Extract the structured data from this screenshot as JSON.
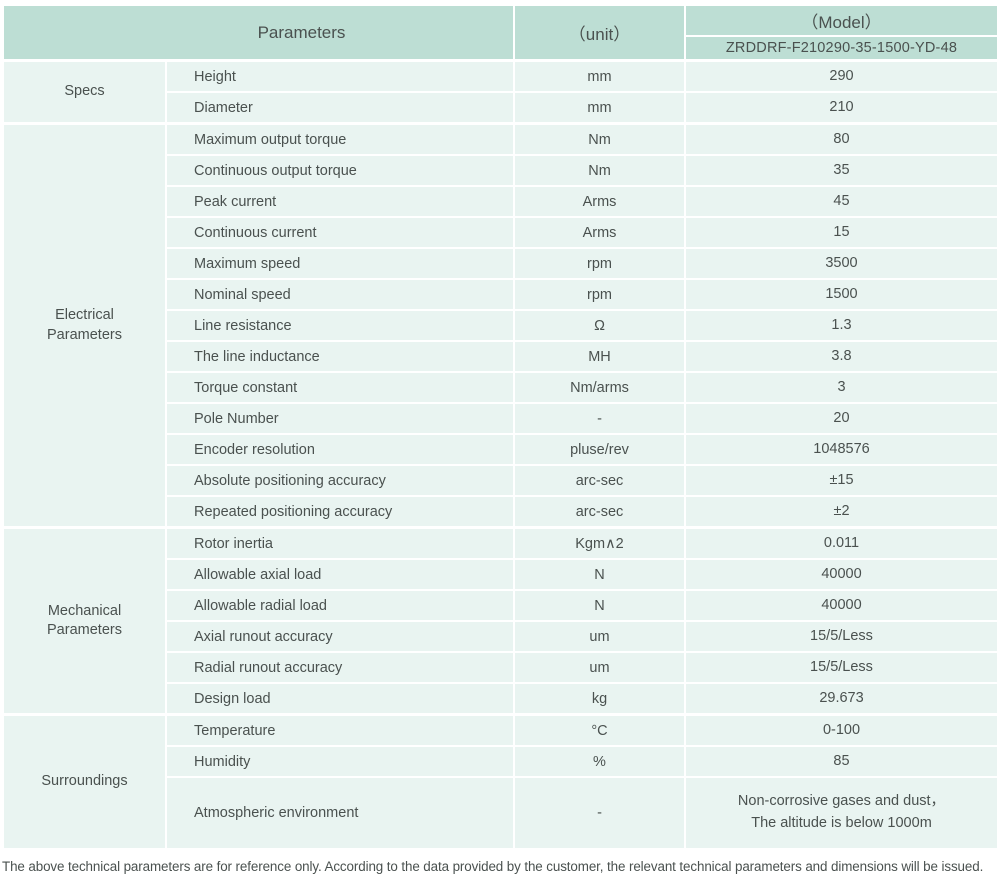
{
  "colors": {
    "header_bg": "#bdded4",
    "row_bg": "#e9f4f1",
    "text": "#4a514f"
  },
  "table": {
    "header": {
      "parameters_label": "Parameters",
      "unit_label": "（unit）",
      "model_label": "（Model）",
      "model_number": "ZRDDRF-F210290-35-1500-YD-48"
    },
    "sections": [
      {
        "group": "Specs",
        "rows": [
          {
            "param": "Height",
            "unit": "mm",
            "value": "290"
          },
          {
            "param": "Diameter",
            "unit": "mm",
            "value": "210"
          }
        ]
      },
      {
        "group": "Electrical\nParameters",
        "rows": [
          {
            "param": "Maximum output torque",
            "unit": "Nm",
            "value": "80"
          },
          {
            "param": "Continuous output torque",
            "unit": "Nm",
            "value": "35"
          },
          {
            "param": "Peak current",
            "unit": "Arms",
            "value": "45"
          },
          {
            "param": "Continuous current",
            "unit": "Arms",
            "value": "15"
          },
          {
            "param": "Maximum speed",
            "unit": "rpm",
            "value": "3500"
          },
          {
            "param": "Nominal speed",
            "unit": "rpm",
            "value": "1500"
          },
          {
            "param": "Line resistance",
            "unit": "Ω",
            "value": "1.3"
          },
          {
            "param": "The line inductance",
            "unit": "MH",
            "value": "3.8"
          },
          {
            "param": "Torque constant",
            "unit": "Nm/arms",
            "value": "3"
          },
          {
            "param": "Pole Number",
            "unit": "-",
            "value": "20"
          },
          {
            "param": "Encoder resolution",
            "unit": "pluse/rev",
            "value": "1048576"
          },
          {
            "param": "Absolute positioning accuracy",
            "unit": "arc-sec",
            "value": "±15"
          },
          {
            "param": "Repeated positioning accuracy",
            "unit": "arc-sec",
            "value": "±2"
          }
        ]
      },
      {
        "group": "Mechanical\nParameters",
        "rows": [
          {
            "param": "Rotor inertia",
            "unit": "Kgm∧2",
            "value": "0.011"
          },
          {
            "param": "Allowable axial load",
            "unit": "N",
            "value": "40000"
          },
          {
            "param": "Allowable radial load",
            "unit": "N",
            "value": "40000"
          },
          {
            "param": "Axial runout accuracy",
            "unit": "um",
            "value": "15/5/Less"
          },
          {
            "param": "Radial runout accuracy",
            "unit": "um",
            "value": "15/5/Less"
          },
          {
            "param": "Design load",
            "unit": "kg",
            "value": "29.673"
          }
        ]
      },
      {
        "group": "Surroundings",
        "rows": [
          {
            "param": "Temperature",
            "unit": "°C",
            "value": "0-100"
          },
          {
            "param": "Humidity",
            "unit": "%",
            "value": "85"
          },
          {
            "param": "Atmospheric environment",
            "unit": "-",
            "value": "Non-corrosive gases and dust，\nThe altitude is below 1000m"
          }
        ]
      }
    ],
    "footnote": "The above technical parameters are for reference only. According to the data provided by the customer, the relevant technical parameters and dimensions will be issued."
  }
}
